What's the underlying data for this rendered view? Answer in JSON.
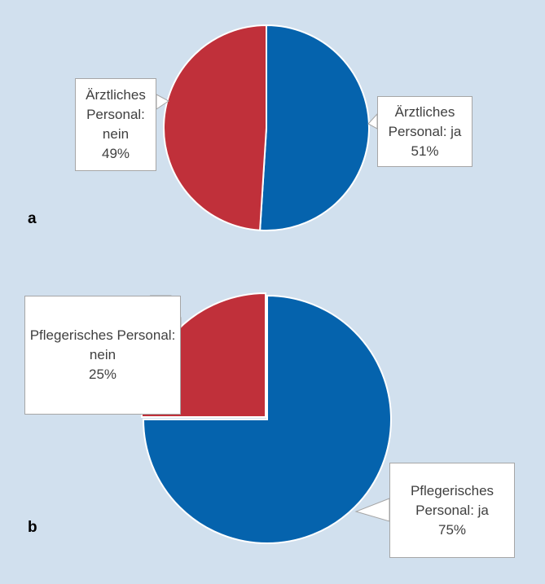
{
  "chart_data": [
    {
      "type": "pie",
      "panel": "a",
      "categories": [
        "Ärztliches Personal: ja",
        "Ärztliches Personal: nein"
      ],
      "values": [
        51,
        49
      ],
      "value_labels": [
        "51%",
        "49%"
      ],
      "colors": [
        "#0563ad",
        "#c0303a"
      ]
    },
    {
      "type": "pie",
      "panel": "b",
      "categories": [
        "Pflegerisches Personal: ja",
        "Pflegerisches Personal: nein"
      ],
      "values": [
        75,
        25
      ],
      "value_labels": [
        "75%",
        "25%"
      ],
      "colors": [
        "#0563ad",
        "#c0303a"
      ]
    }
  ]
}
